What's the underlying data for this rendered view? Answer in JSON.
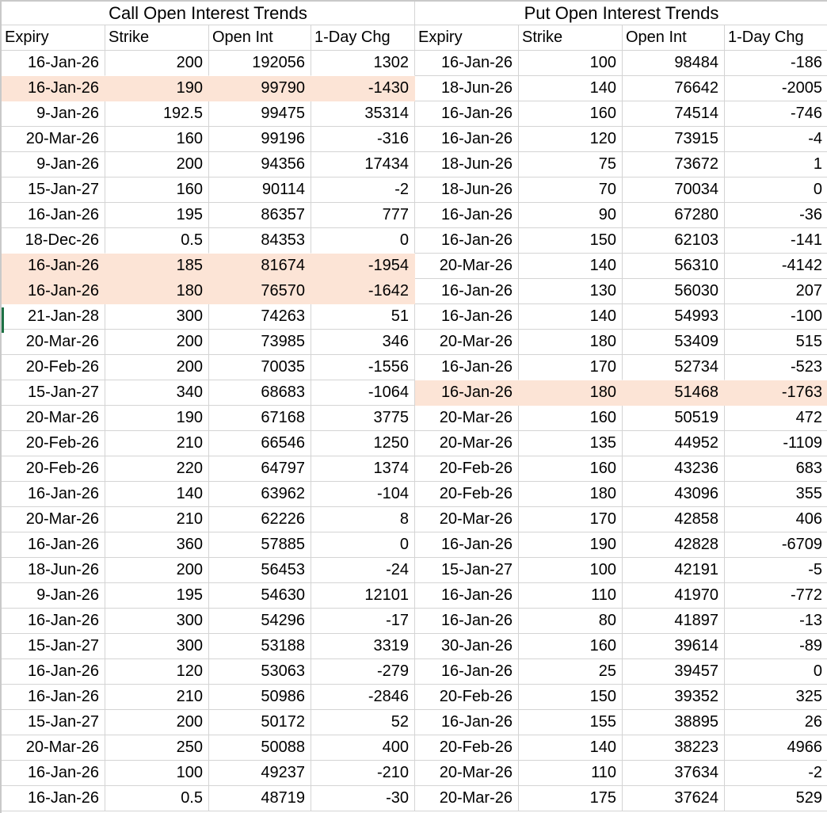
{
  "colors": {
    "highlight_fill": "#fce4d6",
    "gridline": "#d4d4d4",
    "selection_marker_green": "#1e7145",
    "text": "#000000",
    "background": "#ffffff"
  },
  "tables": [
    {
      "id": "call",
      "title": "Call Open Interest Trends",
      "columns": [
        "Expiry",
        "Strike",
        "Open Int",
        "1-Day Chg"
      ],
      "highlighted_rows": [
        2,
        9,
        10
      ],
      "selected_row_marker": 11,
      "rows": [
        [
          "16-Jan-26",
          "200",
          "192056",
          "1302"
        ],
        [
          "16-Jan-26",
          "190",
          "99790",
          "-1430"
        ],
        [
          "9-Jan-26",
          "192.5",
          "99475",
          "35314"
        ],
        [
          "20-Mar-26",
          "160",
          "99196",
          "-316"
        ],
        [
          "9-Jan-26",
          "200",
          "94356",
          "17434"
        ],
        [
          "15-Jan-27",
          "160",
          "90114",
          "-2"
        ],
        [
          "16-Jan-26",
          "195",
          "86357",
          "777"
        ],
        [
          "18-Dec-26",
          "0.5",
          "84353",
          "0"
        ],
        [
          "16-Jan-26",
          "185",
          "81674",
          "-1954"
        ],
        [
          "16-Jan-26",
          "180",
          "76570",
          "-1642"
        ],
        [
          "21-Jan-28",
          "300",
          "74263",
          "51"
        ],
        [
          "20-Mar-26",
          "200",
          "73985",
          "346"
        ],
        [
          "20-Feb-26",
          "200",
          "70035",
          "-1556"
        ],
        [
          "15-Jan-27",
          "340",
          "68683",
          "-1064"
        ],
        [
          "20-Mar-26",
          "190",
          "67168",
          "3775"
        ],
        [
          "20-Feb-26",
          "210",
          "66546",
          "1250"
        ],
        [
          "20-Feb-26",
          "220",
          "64797",
          "1374"
        ],
        [
          "16-Jan-26",
          "140",
          "63962",
          "-104"
        ],
        [
          "20-Mar-26",
          "210",
          "62226",
          "8"
        ],
        [
          "16-Jan-26",
          "360",
          "57885",
          "0"
        ],
        [
          "18-Jun-26",
          "200",
          "56453",
          "-24"
        ],
        [
          "9-Jan-26",
          "195",
          "54630",
          "12101"
        ],
        [
          "16-Jan-26",
          "300",
          "54296",
          "-17"
        ],
        [
          "15-Jan-27",
          "300",
          "53188",
          "3319"
        ],
        [
          "16-Jan-26",
          "120",
          "53063",
          "-279"
        ],
        [
          "16-Jan-26",
          "210",
          "50986",
          "-2846"
        ],
        [
          "15-Jan-27",
          "200",
          "50172",
          "52"
        ],
        [
          "20-Mar-26",
          "250",
          "50088",
          "400"
        ],
        [
          "16-Jan-26",
          "100",
          "49237",
          "-210"
        ],
        [
          "16-Jan-26",
          "0.5",
          "48719",
          "-30"
        ]
      ]
    },
    {
      "id": "put",
      "title": "Put Open Interest Trends",
      "columns": [
        "Expiry",
        "Strike",
        "Open Int",
        "1-Day Chg"
      ],
      "highlighted_rows": [
        14
      ],
      "rows": [
        [
          "16-Jan-26",
          "100",
          "98484",
          "-186"
        ],
        [
          "18-Jun-26",
          "140",
          "76642",
          "-2005"
        ],
        [
          "16-Jan-26",
          "160",
          "74514",
          "-746"
        ],
        [
          "16-Jan-26",
          "120",
          "73915",
          "-4"
        ],
        [
          "18-Jun-26",
          "75",
          "73672",
          "1"
        ],
        [
          "18-Jun-26",
          "70",
          "70034",
          "0"
        ],
        [
          "16-Jan-26",
          "90",
          "67280",
          "-36"
        ],
        [
          "16-Jan-26",
          "150",
          "62103",
          "-141"
        ],
        [
          "20-Mar-26",
          "140",
          "56310",
          "-4142"
        ],
        [
          "16-Jan-26",
          "130",
          "56030",
          "207"
        ],
        [
          "16-Jan-26",
          "140",
          "54993",
          "-100"
        ],
        [
          "20-Mar-26",
          "180",
          "53409",
          "515"
        ],
        [
          "16-Jan-26",
          "170",
          "52734",
          "-523"
        ],
        [
          "16-Jan-26",
          "180",
          "51468",
          "-1763"
        ],
        [
          "20-Mar-26",
          "160",
          "50519",
          "472"
        ],
        [
          "20-Mar-26",
          "135",
          "44952",
          "-1109"
        ],
        [
          "20-Feb-26",
          "160",
          "43236",
          "683"
        ],
        [
          "20-Feb-26",
          "180",
          "43096",
          "355"
        ],
        [
          "20-Mar-26",
          "170",
          "42858",
          "406"
        ],
        [
          "16-Jan-26",
          "190",
          "42828",
          "-6709"
        ],
        [
          "15-Jan-27",
          "100",
          "42191",
          "-5"
        ],
        [
          "16-Jan-26",
          "110",
          "41970",
          "-772"
        ],
        [
          "16-Jan-26",
          "80",
          "41897",
          "-13"
        ],
        [
          "30-Jan-26",
          "160",
          "39614",
          "-89"
        ],
        [
          "16-Jan-26",
          "25",
          "39457",
          "0"
        ],
        [
          "20-Feb-26",
          "150",
          "39352",
          "325"
        ],
        [
          "16-Jan-26",
          "155",
          "38895",
          "26"
        ],
        [
          "20-Feb-26",
          "140",
          "38223",
          "4966"
        ],
        [
          "20-Mar-26",
          "110",
          "37634",
          "-2"
        ],
        [
          "20-Mar-26",
          "175",
          "37624",
          "529"
        ]
      ]
    }
  ]
}
